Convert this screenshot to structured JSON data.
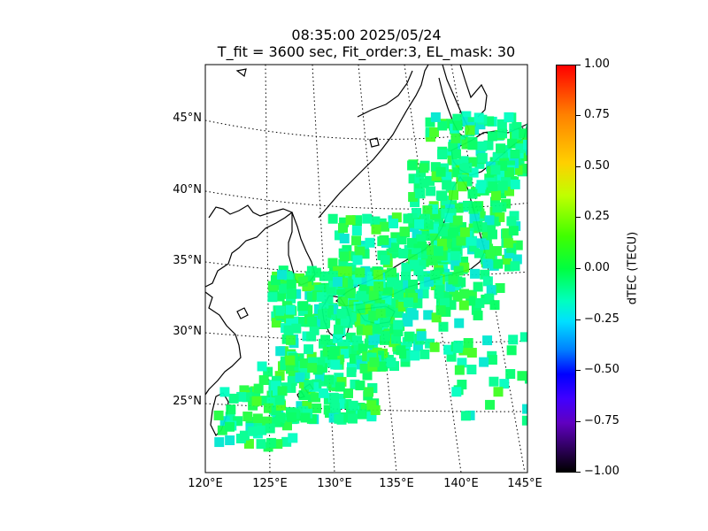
{
  "title": {
    "line1": "08:35:00 2025/05/24",
    "line2": "T_fit = 3600 sec, Fit_order:3, EL_mask: 30"
  },
  "lat_ticks": [
    "45°N",
    "40°N",
    "35°N",
    "30°N",
    "25°N"
  ],
  "lon_ticks": [
    "120°E",
    "125°E",
    "130°E",
    "135°E",
    "140°E",
    "145°E"
  ],
  "colorbar": {
    "label": "dTEC (TECU)",
    "ticks": [
      "1.00",
      "0.75",
      "0.50",
      "0.25",
      "0.00",
      "−0.25",
      "−0.50",
      "−0.75",
      "−1.00"
    ],
    "range": [
      -1.0,
      1.0
    ],
    "colormap": "nipy_spectral-like"
  },
  "map": {
    "lon_range": [
      120,
      145
    ],
    "lat_range": [
      20,
      48
    ],
    "grid": "dotted",
    "dominant_value_range": [
      -0.3,
      0.3
    ]
  }
}
